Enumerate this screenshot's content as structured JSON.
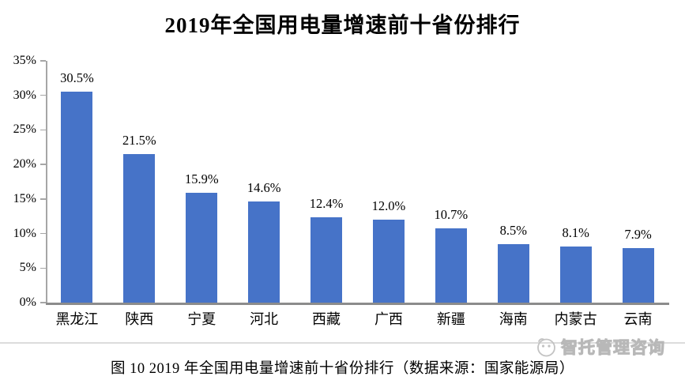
{
  "title": "2019年全国用电量增速前十省份排行",
  "caption": "图 10  2019 年全国用电量增速前十省份排行（数据来源：国家能源局）",
  "watermark": {
    "text": "智托管理咨询"
  },
  "colors": {
    "bar": "#4673c8",
    "axis": "#a6a6a6",
    "baseline": "#8c8c8c",
    "divider": "#dcdcdc",
    "watermark": "#bdbdbd"
  },
  "chart_data": {
    "type": "bar",
    "title": "2019年全国用电量增速前十省份排行",
    "categories": [
      "黑龙江",
      "陕西",
      "宁夏",
      "河北",
      "西藏",
      "广西",
      "新疆",
      "海南",
      "内蒙古",
      "云南"
    ],
    "values": [
      30.5,
      21.5,
      15.9,
      14.6,
      12.4,
      12.0,
      10.7,
      8.5,
      8.1,
      7.9
    ],
    "value_labels": [
      "30.5%",
      "21.5%",
      "15.9%",
      "14.6%",
      "12.4%",
      "12.0%",
      "10.7%",
      "8.5%",
      "8.1%",
      "7.9%"
    ],
    "y_ticks": [
      0,
      5,
      10,
      15,
      20,
      25,
      30,
      35
    ],
    "y_tick_labels": [
      "0%",
      "5%",
      "10%",
      "15%",
      "20%",
      "25%",
      "30%",
      "35%"
    ],
    "xlabel": "",
    "ylabel": "",
    "ylim": [
      0,
      35
    ],
    "grid": false,
    "legend": false,
    "bar_color": "#4673c8",
    "data_labels_shown": true
  }
}
